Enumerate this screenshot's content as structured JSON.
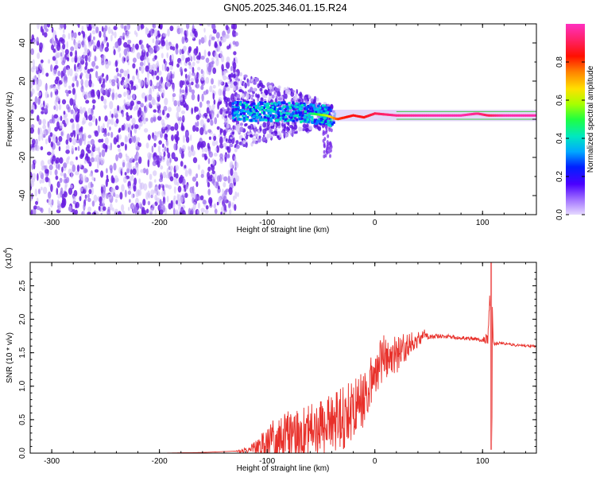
{
  "figure_title": "GN05.2025.346.01.15.R24",
  "colors": {
    "snr_line": "#e8302a",
    "spectrogram_points": "#6a1fe0",
    "ridge": "#e8302a",
    "colorbar_stops": [
      "#c8a8ff",
      "#4b00ff",
      "#0030ff",
      "#00b0ff",
      "#00e8b0",
      "#30ff30",
      "#c8ff00",
      "#ffd000",
      "#ff6000",
      "#ff0000",
      "#ff2060",
      "#ff2cb0"
    ]
  },
  "chart_data": [
    {
      "type": "heatmap",
      "name": "spectrogram",
      "xlabel": "Height of straight line (km)",
      "ylabel": "Frequency (Hz)",
      "xlim": [
        -320,
        150
      ],
      "ylim": [
        -50,
        50
      ],
      "x_ticks": [
        "-300",
        "-200",
        "-100",
        "0",
        "100"
      ],
      "x_tick_values": [
        -300,
        -200,
        -100,
        0,
        100
      ],
      "y_ticks": [
        "-40",
        "-20",
        "0",
        "20",
        "40"
      ],
      "y_tick_values": [
        -40,
        -20,
        0,
        20,
        40
      ],
      "noise_region_x": [
        -320,
        -135
      ],
      "ridge": {
        "x": [
          -135,
          -120,
          -100,
          -80,
          -60,
          -45,
          -35,
          -20,
          -10,
          0,
          20,
          40,
          60,
          80,
          95,
          105,
          120,
          150
        ],
        "y": [
          5,
          4,
          4,
          4,
          3,
          2,
          0,
          2,
          1,
          3,
          2,
          2,
          2,
          2,
          3,
          2,
          2,
          2
        ],
        "amplitude": [
          0.2,
          0.3,
          0.35,
          0.35,
          0.45,
          0.6,
          0.8,
          0.85,
          0.85,
          0.9,
          0.95,
          0.97,
          0.98,
          0.98,
          0.95,
          0.9,
          0.98,
          0.98
        ]
      },
      "colorbar": {
        "label": "Normalized spectral amplitude",
        "ticks": [
          "0.0",
          "0.2",
          "0.4",
          "0.6",
          "0.8"
        ],
        "tick_values": [
          0.0,
          0.2,
          0.4,
          0.6,
          0.8
        ],
        "range": [
          0,
          1
        ]
      }
    },
    {
      "type": "line",
      "name": "snr",
      "xlabel": "Height of straight line (km)",
      "ylabel": "SNR (10 * v/v)",
      "multiplier_label": "(x10",
      "multiplier_exponent": "4",
      "xlim": [
        -320,
        150
      ],
      "ylim": [
        0,
        2.85
      ],
      "x_ticks": [
        "-300",
        "-200",
        "-100",
        "0",
        "100"
      ],
      "x_tick_values": [
        -300,
        -200,
        -100,
        0,
        100
      ],
      "y_ticks": [
        "0.0",
        "0.5",
        "1.0",
        "1.5",
        "2.0",
        "2.5"
      ],
      "y_tick_values": [
        0,
        0.5,
        1.0,
        1.5,
        2.0,
        2.5
      ],
      "series": [
        {
          "x": [
            -320,
            -250,
            -200,
            -160,
            -130,
            -120,
            -110,
            -100,
            -90,
            -80,
            -70,
            -60,
            -50,
            -40,
            -30,
            -20,
            -10,
            0,
            10,
            20,
            30,
            40,
            45,
            50,
            60,
            70,
            80,
            90,
            100,
            105,
            108,
            110,
            120,
            130,
            150
          ],
          "y": [
            0.0,
            0.0,
            0.0,
            0.01,
            0.03,
            0.05,
            0.12,
            0.2,
            0.33,
            0.38,
            0.35,
            0.45,
            0.5,
            0.58,
            0.62,
            0.8,
            0.9,
            1.3,
            1.55,
            1.55,
            1.65,
            1.72,
            1.8,
            1.75,
            1.75,
            1.75,
            1.73,
            1.72,
            1.7,
            1.72,
            2.85,
            1.65,
            1.64,
            1.62,
            1.6
          ],
          "noise_amplitude": [
            0.0,
            0.0,
            0.0,
            0.0,
            0.0,
            0.05,
            0.1,
            0.25,
            0.35,
            0.4,
            0.4,
            0.4,
            0.45,
            0.45,
            0.5,
            0.45,
            0.4,
            0.35,
            0.35,
            0.3,
            0.2,
            0.12,
            0.1,
            0.05,
            0.03,
            0.03,
            0.03,
            0.03,
            0.03,
            0.1,
            0.0,
            0.03,
            0.02,
            0.02,
            0.02
          ]
        }
      ]
    }
  ]
}
